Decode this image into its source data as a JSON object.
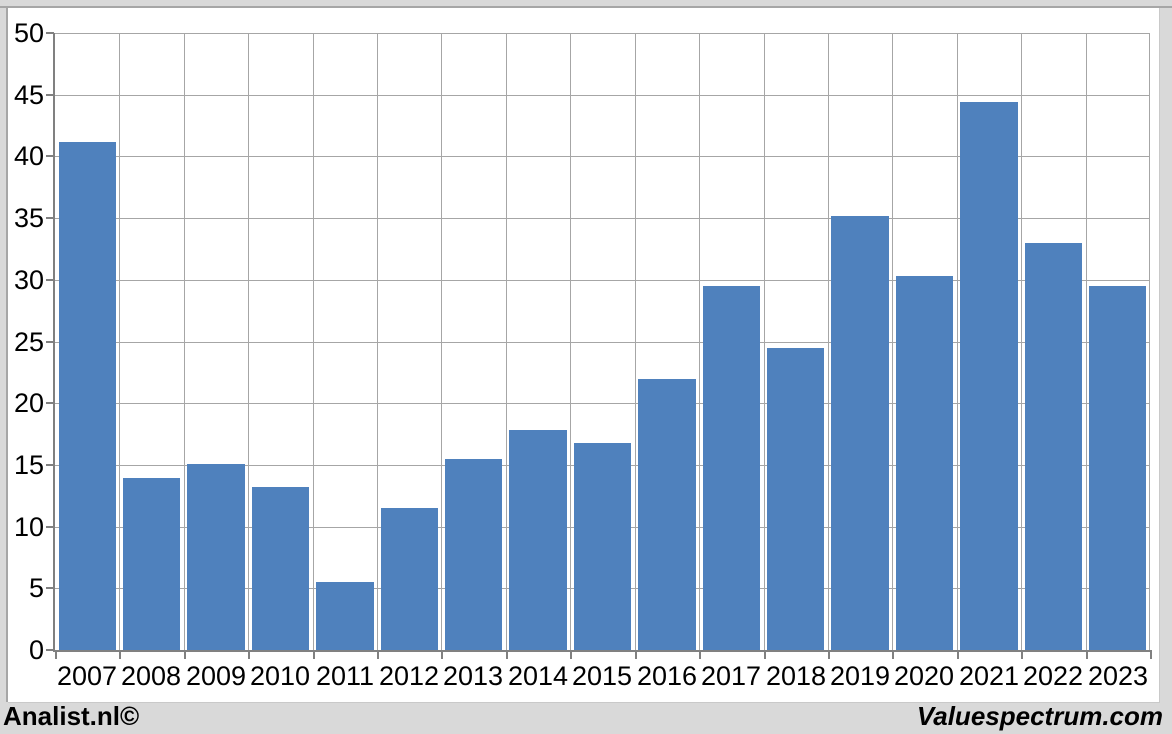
{
  "chart_data": {
    "type": "bar",
    "title": "",
    "xlabel": "",
    "ylabel": "",
    "categories": [
      "2007",
      "2008",
      "2009",
      "2010",
      "2011",
      "2012",
      "2013",
      "2014",
      "2015",
      "2016",
      "2017",
      "2018",
      "2019",
      "2020",
      "2021",
      "2022",
      "2023"
    ],
    "values": [
      41.2,
      13.9,
      15.1,
      13.2,
      5.5,
      11.5,
      15.5,
      17.8,
      16.8,
      22.0,
      29.5,
      24.5,
      35.2,
      30.3,
      44.4,
      33.0,
      29.5
    ],
    "ylim": [
      0,
      50
    ],
    "yticks": [
      0,
      5,
      10,
      15,
      20,
      25,
      30,
      35,
      40,
      45,
      50
    ],
    "grid": true,
    "legend": "none",
    "colors": {
      "bar": "#4F81BD",
      "gridline": "#A6A6A6",
      "axis": "#808080",
      "panel_background": "#FFFFFF",
      "page_background": "#D9D9D9",
      "frame_border": "#A6A6A6",
      "text": "#000000"
    }
  },
  "footer": {
    "left_text": "Analist.nl©",
    "right_text": "Valuespectrum.com"
  }
}
